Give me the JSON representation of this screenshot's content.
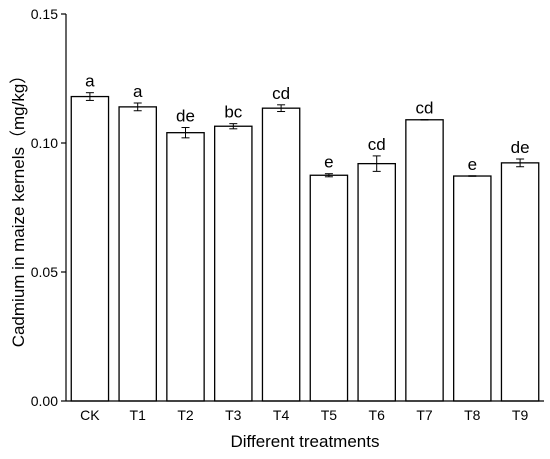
{
  "chart_data": {
    "type": "bar",
    "title": "",
    "xlabel": "Different treatments",
    "ylabel": "Cadmium in maize kernels（mg/kg）",
    "ylim": [
      0,
      0.15
    ],
    "yticks": [
      "0.00",
      "0.05",
      "0.10",
      "0.15"
    ],
    "yticks_values": [
      0,
      0.05,
      0.1,
      0.15
    ],
    "grid": false,
    "categories": [
      "CK",
      "T1",
      "T2",
      "T3",
      "T4",
      "T5",
      "T6",
      "T7",
      "T8",
      "T9"
    ],
    "values": [
      0.118,
      0.114,
      0.104,
      0.1065,
      0.1135,
      0.0875,
      0.092,
      0.109,
      0.0872,
      0.0923
    ],
    "errors": [
      0.0015,
      0.0015,
      0.002,
      0.001,
      0.0013,
      0.0006,
      0.003,
      0.0001,
      0.0001,
      0.0015
    ],
    "significance_labels": [
      "a",
      "a",
      "de",
      "bc",
      "cd",
      "e",
      "cd",
      "cd",
      "e",
      "de"
    ]
  }
}
